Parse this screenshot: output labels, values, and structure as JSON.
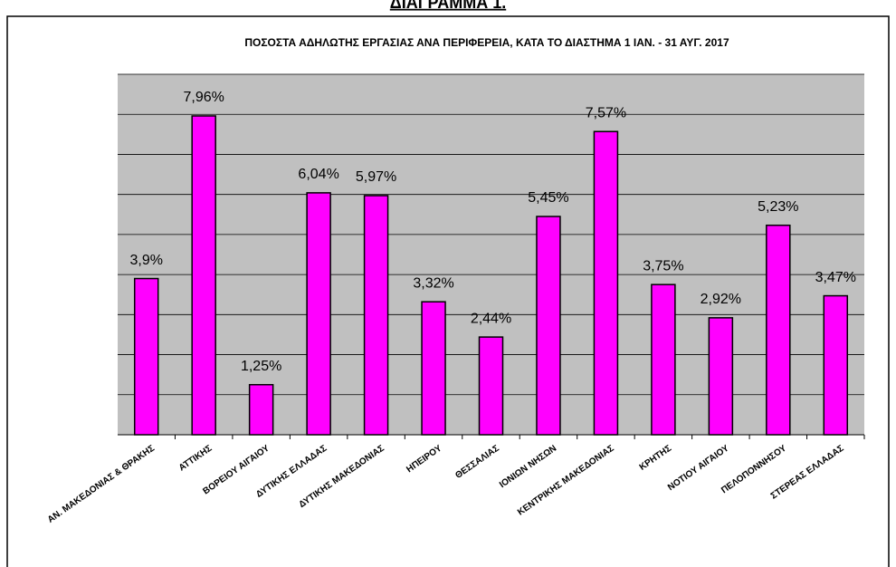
{
  "heading": "ΔΙΑΓΡΑΜΜΑ 1.",
  "chart_data": {
    "type": "bar",
    "title": "ΠΟΣΟΣΤΑ ΑΔΗΛΩΤΗΣ ΕΡΓΑΣΙΑΣ ΑΝΑ ΠΕΡΙΦΕΡΕΙΑ, ΚΑΤΑ ΤΟ ΔΙΑΣΤΗΜΑ 1 ΙΑΝ. - 31  ΑΥΓ. 2017",
    "categories": [
      "ΑΝ. ΜΑΚΕΔΟΝΙΑΣ & ΘΡΑΚΗΣ",
      "ΑΤΤΙΚΗΣ",
      "ΒΟΡΕΙΟΥ ΑΙΓΑΙΟΥ",
      "ΔΥΤΙΚΗΣ ΕΛΛΑΔΑΣ",
      "ΔΥΤΙΚΗΣ ΜΑΚΕΔΟΝΙΑΣ",
      "ΗΠΕΙΡΟΥ",
      "ΘΕΣΣΑΛΙΑΣ",
      "ΙΟΝΙΩΝ ΝΗΣΩΝ",
      "ΚΕΝΤΡΙΚΗΣ ΜΑΚΕΔΟΝΙΑΣ",
      "ΚΡΗΤΗΣ",
      "ΝΟΤΙΟΥ ΑΙΓΑΙΟΥ",
      "ΠΕΛΟΠΟΝΝΗΣΟΥ",
      "ΣΤΕΡΕΑΣ ΕΛΛΑΔΑΣ"
    ],
    "values": [
      3.9,
      7.96,
      1.25,
      6.04,
      5.97,
      3.32,
      2.44,
      5.45,
      7.57,
      3.75,
      2.92,
      5.23,
      3.47
    ],
    "value_labels": [
      "3,9%",
      "7,96%",
      "1,25%",
      "6,04%",
      "5,97%",
      "3,32%",
      "2,44%",
      "5,45%",
      "7,57%",
      "3,75%",
      "2,92%",
      "5,23%",
      "3,47%"
    ],
    "color": "#ff00ff",
    "ylim": [
      0,
      9
    ],
    "yticks": [
      0,
      1,
      2,
      3,
      4,
      5,
      6,
      7,
      8,
      9
    ],
    "grid": true
  }
}
